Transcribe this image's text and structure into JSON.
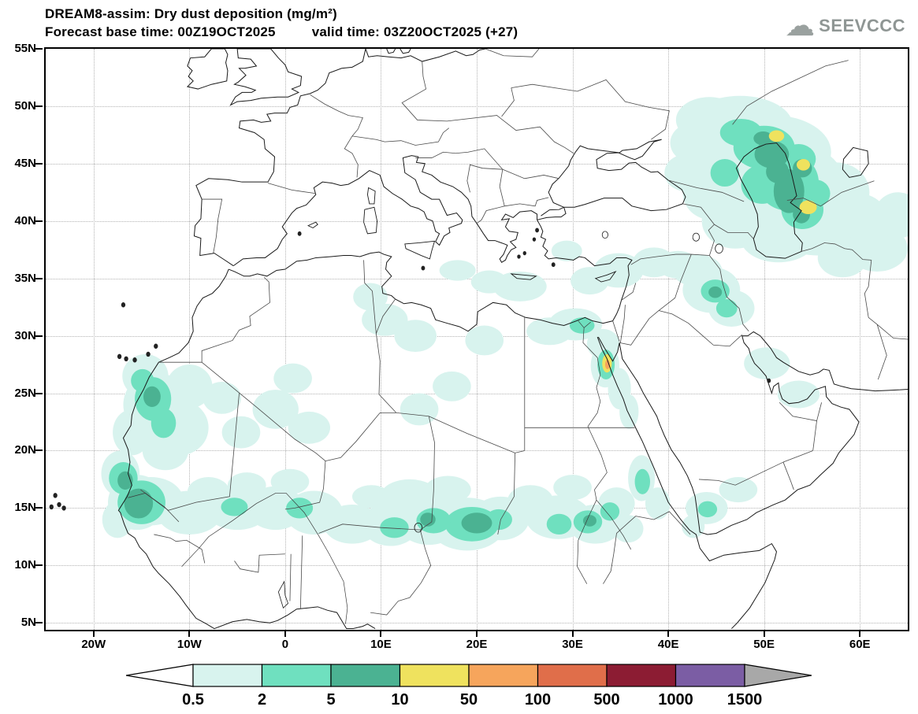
{
  "header": {
    "title": "DREAM8-assim: Dry dust deposition (mg/m²)",
    "forecast_base": "Forecast base time: 00Z19OCT2025",
    "valid": "valid time: 03Z20OCT2025 (+27)",
    "logo_text": "SEEVCCC",
    "cloud_glyph": "☁"
  },
  "map": {
    "lat_ticks": [
      "55N",
      "50N",
      "45N",
      "40N",
      "35N",
      "30N",
      "25N",
      "20N",
      "15N",
      "10N",
      "5N"
    ],
    "lon_ticks": [
      "20W",
      "10W",
      "0",
      "10E",
      "20E",
      "30E",
      "40E",
      "50E",
      "60E"
    ]
  },
  "legend": {
    "values": [
      "0.5",
      "2",
      "5",
      "10",
      "50",
      "100",
      "500",
      "1000",
      "1500"
    ],
    "colors": {
      "under": "#ffffff",
      "bins": [
        "#d8f3ee",
        "#6fe0bf",
        "#4bb292",
        "#efe25e",
        "#f6a55c",
        "#e06e4a",
        "#8c1c33",
        "#7b5da4"
      ],
      "over": "#a8a8a8"
    },
    "units": "mg/m²"
  }
}
